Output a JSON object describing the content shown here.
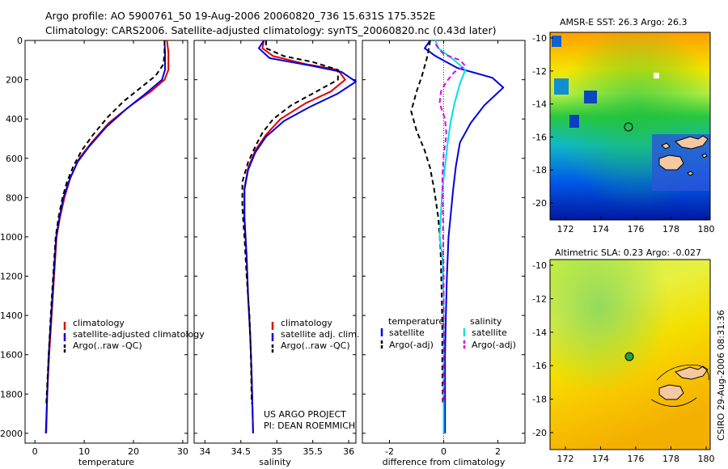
{
  "title": {
    "line1": "Argo profile: AO 5900761_50 19-Aug-2006 20060820_736 15.631S 175.352E",
    "line2": "Climatology: CARS2006. Satellite-adjusted climatology: synTS_20060820.nc (0.43d later)"
  },
  "side_label": "CSIRO 29-Aug-2006 08:31:36",
  "credit": {
    "line1": "US ARGO PROJECT",
    "line2": "PI: DEAN ROEMMICH"
  },
  "colors": {
    "climatology": "#e00000",
    "satellite": "#0000e0",
    "argo": "#000000",
    "sat_salinity": "#00e0e0",
    "argo_salinity": "#e000e0"
  },
  "chart_data": [
    {
      "type": "line",
      "xlabel": "temperature",
      "ylabel": "",
      "xlim": [
        -2,
        31
      ],
      "ylim": [
        2050,
        0
      ],
      "xticks": [
        0,
        10,
        20,
        30
      ],
      "yticks": [
        0,
        200,
        400,
        600,
        800,
        1000,
        1200,
        1400,
        1600,
        1800,
        2000
      ],
      "legend": [
        "climatology",
        "satellite-adjusted climatology",
        "Argo(..raw -QC)"
      ],
      "series": [
        {
          "name": "climatology",
          "color": "#e00000",
          "dash": "",
          "points": [
            [
              26.8,
              0
            ],
            [
              27.1,
              60
            ],
            [
              27.1,
              150
            ],
            [
              26.3,
              200
            ],
            [
              23.5,
              260
            ],
            [
              19.5,
              330
            ],
            [
              15,
              420
            ],
            [
              11.5,
              520
            ],
            [
              9,
              600
            ],
            [
              7.2,
              700
            ],
            [
              6,
              800
            ],
            [
              5.1,
              900
            ],
            [
              4.4,
              1000
            ],
            [
              3.9,
              1200
            ],
            [
              3.4,
              1400
            ],
            [
              2.9,
              1600
            ],
            [
              2.5,
              1800
            ],
            [
              2.3,
              2000
            ]
          ]
        },
        {
          "name": "satellite-adjusted climatology",
          "color": "#0000e0",
          "dash": "",
          "points": [
            [
              26.3,
              0
            ],
            [
              26.4,
              60
            ],
            [
              26.4,
              150
            ],
            [
              25.8,
              200
            ],
            [
              22.5,
              270
            ],
            [
              18.5,
              350
            ],
            [
              14.5,
              440
            ],
            [
              11,
              540
            ],
            [
              8.6,
              620
            ],
            [
              7,
              710
            ],
            [
              5.8,
              800
            ],
            [
              5,
              900
            ],
            [
              4.3,
              1000
            ],
            [
              3.8,
              1200
            ],
            [
              3.3,
              1400
            ],
            [
              2.8,
              1600
            ],
            [
              2.5,
              1800
            ],
            [
              2.2,
              2000
            ]
          ]
        },
        {
          "name": "Argo(..raw -QC)",
          "color": "#000000",
          "dash": "6,4",
          "points": [
            [
              26.3,
              0
            ],
            [
              26.3,
              60
            ],
            [
              26.1,
              120
            ],
            [
              24.5,
              180
            ],
            [
              21.5,
              240
            ],
            [
              18,
              310
            ],
            [
              14.8,
              390
            ],
            [
              11.8,
              480
            ],
            [
              9.5,
              560
            ],
            [
              7.8,
              640
            ],
            [
              6.5,
              720
            ],
            [
              5.6,
              800
            ],
            [
              4.8,
              900
            ],
            [
              4.2,
              1000
            ],
            [
              3.7,
              1200
            ],
            [
              3.2,
              1400
            ],
            [
              2.8,
              1600
            ],
            [
              2.4,
              1800
            ],
            [
              2.3,
              1850
            ]
          ]
        }
      ]
    },
    {
      "type": "line",
      "xlabel": "salinity",
      "ylabel": "",
      "xlim": [
        33.85,
        36.1
      ],
      "ylim": [
        2050,
        0
      ],
      "xticks": [
        34,
        34.5,
        35,
        35.5,
        36
      ],
      "yticks": [],
      "legend": [
        "climatology",
        "satellite adj. clim.",
        "Argo(..raw -QC)"
      ],
      "series": [
        {
          "name": "climatology",
          "color": "#e00000",
          "dash": "",
          "points": [
            [
              34.82,
              0
            ],
            [
              34.8,
              40
            ],
            [
              34.95,
              80
            ],
            [
              35.4,
              120
            ],
            [
              35.85,
              150
            ],
            [
              35.95,
              200
            ],
            [
              35.75,
              260
            ],
            [
              35.4,
              320
            ],
            [
              35.05,
              400
            ],
            [
              34.85,
              480
            ],
            [
              34.7,
              560
            ],
            [
              34.6,
              650
            ],
            [
              34.55,
              750
            ],
            [
              34.55,
              900
            ],
            [
              34.58,
              1100
            ],
            [
              34.6,
              1300
            ],
            [
              34.63,
              1500
            ],
            [
              34.65,
              1700
            ],
            [
              34.67,
              2000
            ]
          ]
        },
        {
          "name": "satellite adj. clim.",
          "color": "#0000e0",
          "dash": "",
          "points": [
            [
              34.82,
              0
            ],
            [
              34.75,
              40
            ],
            [
              34.9,
              90
            ],
            [
              35.5,
              130
            ],
            [
              35.9,
              160
            ],
            [
              36.1,
              210
            ],
            [
              35.85,
              270
            ],
            [
              35.45,
              340
            ],
            [
              35.1,
              410
            ],
            [
              34.85,
              490
            ],
            [
              34.7,
              570
            ],
            [
              34.6,
              660
            ],
            [
              34.55,
              760
            ],
            [
              34.55,
              900
            ],
            [
              34.58,
              1100
            ],
            [
              34.6,
              1300
            ],
            [
              34.63,
              1500
            ],
            [
              34.65,
              1700
            ],
            [
              34.67,
              2000
            ]
          ]
        },
        {
          "name": "Argo(..raw -QC)",
          "color": "#000000",
          "dash": "6,4",
          "points": [
            [
              34.85,
              0
            ],
            [
              34.85,
              40
            ],
            [
              35.1,
              80
            ],
            [
              35.5,
              110
            ],
            [
              35.85,
              150
            ],
            [
              35.85,
              200
            ],
            [
              35.55,
              260
            ],
            [
              35.2,
              330
            ],
            [
              34.95,
              400
            ],
            [
              34.8,
              470
            ],
            [
              34.7,
              540
            ],
            [
              34.6,
              620
            ],
            [
              34.52,
              720
            ],
            [
              34.52,
              850
            ],
            [
              34.55,
              1000
            ],
            [
              34.58,
              1200
            ],
            [
              34.62,
              1400
            ],
            [
              34.64,
              1600
            ],
            [
              34.65,
              1850
            ]
          ]
        }
      ]
    },
    {
      "type": "line",
      "xlabel": "difference from climatology",
      "ylabel": "",
      "xlim": [
        -3,
        3
      ],
      "ylim": [
        2050,
        0
      ],
      "xticks": [
        -2,
        0,
        2
      ],
      "yticks": [],
      "legend_headers": [
        "temperature",
        "salinity"
      ],
      "legend": [
        "satellite",
        "Argo(-adj)",
        "satellite",
        "Argo(-adj)"
      ],
      "series": [
        {
          "name": "satellite",
          "group": "temperature",
          "color": "#0000e0",
          "dash": "",
          "points": [
            [
              -0.5,
              0
            ],
            [
              -0.7,
              40
            ],
            [
              -0.3,
              80
            ],
            [
              0.5,
              140
            ],
            [
              1.8,
              190
            ],
            [
              2.2,
              240
            ],
            [
              1.5,
              330
            ],
            [
              1.0,
              420
            ],
            [
              0.6,
              520
            ],
            [
              0.45,
              640
            ],
            [
              0.35,
              760
            ],
            [
              0.25,
              900
            ],
            [
              0.18,
              1000
            ],
            [
              0.12,
              1200
            ],
            [
              0.08,
              1400
            ],
            [
              0.05,
              1600
            ],
            [
              0.05,
              2000
            ]
          ]
        },
        {
          "name": "Argo(-adj)",
          "group": "temperature",
          "color": "#000000",
          "dash": "6,4",
          "points": [
            [
              -0.5,
              0
            ],
            [
              -0.6,
              80
            ],
            [
              -0.8,
              180
            ],
            [
              -1.0,
              260
            ],
            [
              -1.2,
              360
            ],
            [
              -1.0,
              460
            ],
            [
              -0.7,
              560
            ],
            [
              -0.5,
              650
            ],
            [
              -0.35,
              760
            ],
            [
              -0.2,
              900
            ],
            [
              -0.12,
              1050
            ],
            [
              -0.08,
              1250
            ],
            [
              -0.05,
              1450
            ],
            [
              -0.05,
              1650
            ],
            [
              -0.03,
              1850
            ]
          ]
        },
        {
          "name": "satellite",
          "group": "salinity",
          "color": "#00e0e0",
          "dash": "",
          "points": [
            [
              -0.3,
              0
            ],
            [
              -0.2,
              40
            ],
            [
              0.3,
              90
            ],
            [
              0.8,
              150
            ],
            [
              0.6,
              220
            ],
            [
              0.4,
              320
            ],
            [
              0.25,
              420
            ],
            [
              0.15,
              520
            ],
            [
              0.05,
              640
            ],
            [
              -0.05,
              760
            ],
            [
              -0.1,
              880
            ],
            [
              -0.15,
              1000
            ],
            [
              -0.05,
              1100
            ],
            [
              0.0,
              1300
            ],
            [
              0.0,
              1500
            ],
            [
              0.0,
              2000
            ]
          ]
        },
        {
          "name": "Argo(-adj)",
          "group": "salinity",
          "color": "#e000e0",
          "dash": "6,4",
          "points": [
            [
              -0.3,
              20
            ],
            [
              0.0,
              70
            ],
            [
              0.6,
              100
            ],
            [
              0.8,
              130
            ],
            [
              0.4,
              160
            ],
            [
              0.1,
              210
            ],
            [
              -0.1,
              260
            ],
            [
              -0.15,
              320
            ],
            [
              0.05,
              400
            ],
            [
              0.1,
              480
            ],
            [
              0.0,
              580
            ],
            [
              -0.05,
              700
            ],
            [
              -0.03,
              840
            ],
            [
              -0.02,
              1000
            ],
            [
              0.0,
              1200
            ],
            [
              0.0,
              1400
            ],
            [
              0.0,
              1600
            ],
            [
              0.0,
              1850
            ]
          ]
        }
      ]
    }
  ],
  "maps": [
    {
      "title": "AMSR-E SST: 26.3 Argo: 26.3",
      "xticks": [
        "172",
        "174",
        "176",
        "178",
        "180"
      ],
      "yticks": [
        "-10",
        "-12",
        "-14",
        "-16",
        "-18",
        "-20"
      ]
    },
    {
      "title": "Altimetric SLA: 0.23 Argo: -0.027",
      "xticks": [
        "172",
        "174",
        "176",
        "178",
        "180"
      ],
      "yticks": [
        "-10",
        "-12",
        "-14",
        "-16",
        "-18",
        "-20"
      ]
    }
  ]
}
